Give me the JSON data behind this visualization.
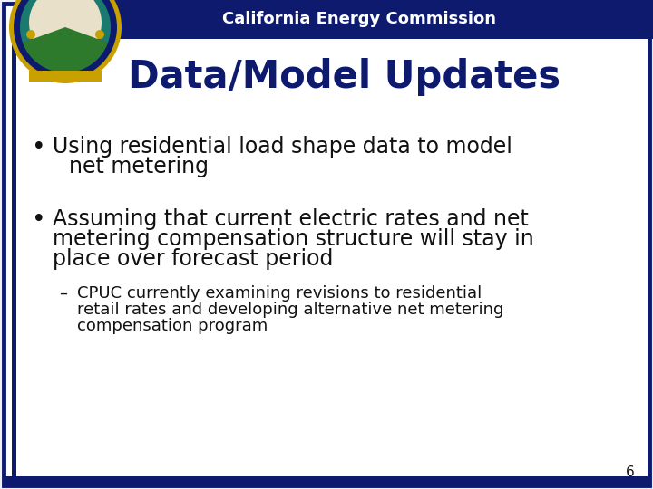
{
  "header_text": "California Energy Commission",
  "header_bg_color": "#0d1a6e",
  "header_text_color": "#ffffff",
  "title_text": "Data/Model Updates",
  "title_color": "#0d1a6e",
  "bg_color": "#ffffff",
  "border_color": "#0d1a6e",
  "slide_bg": "#f0f0f0",
  "bullet1_line1": "Using residential load shape data to model",
  "bullet1_line2": "net metering",
  "bullet2_line1": "Assuming that current electric rates and net",
  "bullet2_line2": "metering compensation structure will stay in",
  "bullet2_line3": "place over forecast period",
  "sub_line1": "CPUC currently examining revisions to residential",
  "sub_line2": "retail rates and developing alternative net metering",
  "sub_line3": "compensation program",
  "page_number": "6",
  "text_color": "#111111",
  "font_size_title": 30,
  "font_size_header": 13,
  "font_size_body": 17,
  "font_size_sub": 13,
  "font_size_page": 11
}
